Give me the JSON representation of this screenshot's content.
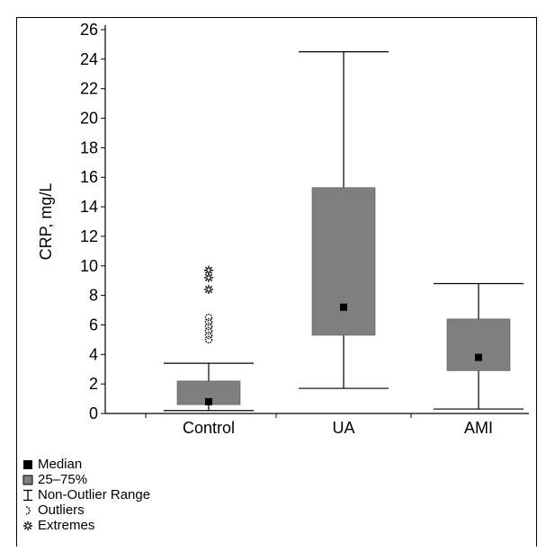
{
  "chart_data": {
    "type": "box",
    "ylabel": "CRP, mg/L",
    "ylim": [
      0,
      26
    ],
    "yticks": [
      "0",
      "2",
      "4",
      "6",
      "8",
      "10",
      "12",
      "14",
      "16",
      "18",
      "20",
      "22",
      "24",
      "26"
    ],
    "categories": [
      "Control",
      "UA",
      "AMI"
    ],
    "boxes": [
      {
        "name": "Control",
        "median": 0.8,
        "q1": 0.6,
        "q3": 2.2,
        "whisker_low": 0.2,
        "whisker_high": 3.4,
        "outliers": [
          5.0,
          5.3,
          5.6,
          5.9,
          6.2,
          6.5
        ],
        "extremes": [
          8.4,
          9.2,
          9.7
        ]
      },
      {
        "name": "UA",
        "median": 7.2,
        "q1": 5.3,
        "q3": 15.3,
        "whisker_low": 1.7,
        "whisker_high": 24.5,
        "outliers": [],
        "extremes": []
      },
      {
        "name": "AMI",
        "median": 3.8,
        "q1": 2.9,
        "q3": 6.4,
        "whisker_low": 0.3,
        "whisker_high": 8.8,
        "outliers": [],
        "extremes": []
      }
    ],
    "colors": {
      "box": "#7f7f7f",
      "median": "#000000",
      "line": "#000000"
    }
  },
  "legend": {
    "items": [
      {
        "key": "median",
        "label": "Median"
      },
      {
        "key": "iqr",
        "label": "25–75%"
      },
      {
        "key": "range",
        "label": "Non-Outlier Range"
      },
      {
        "key": "outliers",
        "label": "Outliers"
      },
      {
        "key": "extremes",
        "label": "Extremes"
      }
    ]
  }
}
